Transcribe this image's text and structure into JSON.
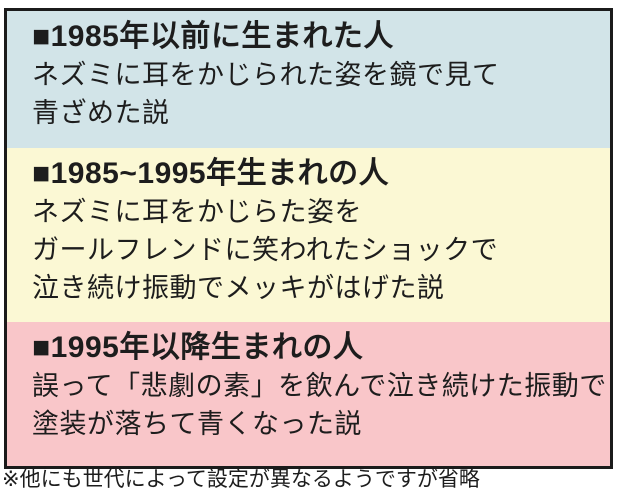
{
  "panel": {
    "sections": [
      {
        "heading": "■1985年以前に生まれた人",
        "lines": [
          "ネズミに耳をかじられた姿を鏡で見て",
          "青ざめた説"
        ],
        "bg": "#d2e4e8"
      },
      {
        "heading": "■1985~1995年生まれの人",
        "lines": [
          "ネズミに耳をかじらた姿を",
          "ガールフレンドに笑われたショックで",
          "泣き続け振動でメッキがはげた説"
        ],
        "bg": "#fbf8d4"
      },
      {
        "heading": "■1995年以降生まれの人",
        "lines": [
          "誤って「悲劇の素」を飲んで泣き続けた振動で",
          "塗装が落ちて青くなった説"
        ],
        "bg": "#f9c6c9"
      }
    ],
    "footnote": "※他にも世代によって設定が異なるようですが省略"
  },
  "colors": {
    "border": "#1b1b1b",
    "background": "#ffffff",
    "text": "#1d1d1d",
    "section_blue": "#d2e4e8",
    "section_yellow": "#fbf8d4",
    "section_pink": "#f9c6c9"
  }
}
